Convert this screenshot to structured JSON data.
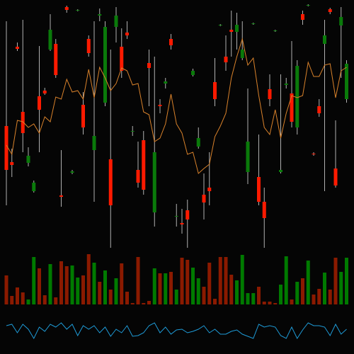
{
  "chart_data": [
    {
      "type": "candlestick",
      "ylim": [
        0,
        360
      ],
      "up_color": "#0a7a0a",
      "down_color": "#ff1a00",
      "wick_color": "#b0b0b0",
      "open": [
        182,
        131,
        294,
        202,
        130,
        90,
        224,
        232,
        290,
        298,
        84,
        350,
        116,
        345,
        212,
        305,
        148,
        338,
        215,
        135,
        322,
        294,
        314,
        174,
        120,
        162,
        271,
        60,
        212,
        242,
        305,
        54,
        45,
        63,
        254,
        153,
        85,
        95,
        244,
        324,
        280,
        318,
        315,
        278,
        117,
        326,
        110,
        75,
        234,
        316,
        117,
        240,
        228,
        180,
        340,
        352,
        143,
        210,
        298,
        347,
        122,
        324,
        220
      ],
      "high": [
        330,
        150,
        300,
        332,
        152,
        105,
        295,
        236,
        340,
        305,
        148,
        352,
        120,
        347,
        230,
        310,
        330,
        348,
        330,
        290,
        350,
        320,
        330,
        182,
        160,
        175,
        290,
        280,
        220,
        250,
        312,
        72,
        65,
        78,
        263,
        180,
        115,
        145,
        278,
        326,
        310,
        345,
        342,
        330,
        235,
        328,
        170,
        95,
        255,
        318,
        255,
        250,
        302,
        275,
        345,
        354,
        145,
        220,
        332,
        349,
        190,
        350,
        275
      ],
      "low": [
        70,
        110,
        288,
        145,
        125,
        88,
        145,
        226,
        288,
        250,
        68,
        342,
        114,
        344,
        170,
        280,
        75,
        330,
        210,
        10,
        300,
        250,
        305,
        168,
        95,
        85,
        210,
        40,
        200,
        235,
        290,
        40,
        30,
        10,
        252,
        150,
        50,
        70,
        210,
        323,
        260,
        280,
        290,
        275,
        100,
        325,
        70,
        10,
        210,
        315,
        115,
        235,
        180,
        170,
        325,
        351,
        140,
        195,
        90,
        340,
        95,
        250,
        215
      ],
      "close": [
        120,
        127,
        291,
        172,
        140,
        102,
        205,
        228,
        318,
        254,
        82,
        346,
        118,
        346,
        180,
        285,
        168,
        340,
        322,
        70,
        338,
        260,
        310,
        175,
        102,
        92,
        264,
        145,
        210,
        245,
        296,
        55,
        43,
        50,
        260,
        165,
        74,
        90,
        220,
        325,
        272,
        315,
        325,
        290,
        160,
        327,
        75,
        52,
        220,
        317,
        120,
        242,
        188,
        267,
        332,
        353,
        142,
        200,
        310,
        343,
        98,
        336,
        270
      ],
      "series": [
        {
          "color": "#d9822b",
          "values": [
            155,
            142,
            190,
            188,
            180,
            185,
            172,
            195,
            188,
            223,
            220,
            248,
            230,
            232,
            220,
            262,
            222,
            265,
            250,
            232,
            242,
            264,
            260,
            240,
            242,
            202,
            198,
            160,
            165,
            185,
            227,
            185,
            172,
            142,
            145,
            115,
            122,
            128,
            167,
            182,
            200,
            250,
            280,
            305,
            268,
            278,
            225,
            180,
            170,
            205,
            165,
            200,
            225,
            222,
            225,
            272,
            252,
            252,
            268,
            270,
            222,
            260,
            265
          ]
        }
      ]
    },
    {
      "type": "bar",
      "ylim": [
        0,
        75
      ],
      "values": [
        41,
        12,
        24,
        17,
        7,
        67,
        51,
        13,
        57,
        10,
        61,
        54,
        55,
        38,
        41,
        71,
        59,
        32,
        48,
        21,
        37,
        58,
        18,
        2,
        67,
        2,
        5,
        51,
        44,
        44,
        46,
        21,
        66,
        63,
        52,
        37,
        25,
        59,
        8,
        67,
        67,
        42,
        34,
        70,
        16,
        16,
        25,
        4,
        4,
        2,
        28,
        68,
        7,
        32,
        37,
        62,
        14,
        22,
        45,
        21,
        66,
        46,
        66
      ],
      "colors": [
        "#8b1a00",
        "#8b1a00",
        "#8b1a00",
        "#8b1a00",
        "#007a00",
        "#007a00",
        "#8b1a00",
        "#8b1a00",
        "#007a00",
        "#8b1a00",
        "#8b1a00",
        "#8b1a00",
        "#007a00",
        "#007a00",
        "#8b1a00",
        "#8b1a00",
        "#007a00",
        "#8b1a00",
        "#007a00",
        "#8b1a00",
        "#007a00",
        "#8b1a00",
        "#8b1a00",
        "#8b1a00",
        "#8b1a00",
        "#8b1a00",
        "#8b1a00",
        "#007a00",
        "#8b1a00",
        "#007a00",
        "#8b1a00",
        "#007a00",
        "#8b1a00",
        "#8b1a00",
        "#007a00",
        "#007a00",
        "#8b1a00",
        "#8b1a00",
        "#8b1a00",
        "#8b1a00",
        "#8b1a00",
        "#8b1a00",
        "#007a00",
        "#007a00",
        "#007a00",
        "#007a00",
        "#8b1a00",
        "#8b1a00",
        "#8b1a00",
        "#8b1a00",
        "#007a00",
        "#007a00",
        "#8b1a00",
        "#007a00",
        "#8b1a00",
        "#007a00",
        "#8b1a00",
        "#8b1a00",
        "#007a00",
        "#8b1a00",
        "#8b1a00",
        "#007a00",
        "#007a00"
      ]
    },
    {
      "type": "line",
      "ylim": [
        15,
        50
      ],
      "color": "#1e9bd7",
      "values": [
        40,
        42,
        30,
        42,
        35,
        22,
        38,
        32,
        42,
        38,
        44,
        35,
        42,
        26,
        40,
        35,
        40,
        30,
        38,
        25,
        35,
        30,
        40,
        25,
        26,
        30,
        40,
        44,
        30,
        38,
        28,
        34,
        35,
        30,
        32,
        35,
        40,
        30,
        35,
        28,
        28,
        32,
        34,
        28,
        25,
        22,
        42,
        38,
        40,
        38,
        26,
        22,
        38,
        22,
        34,
        44,
        40,
        40,
        38,
        26,
        42,
        28,
        35
      ]
    }
  ]
}
